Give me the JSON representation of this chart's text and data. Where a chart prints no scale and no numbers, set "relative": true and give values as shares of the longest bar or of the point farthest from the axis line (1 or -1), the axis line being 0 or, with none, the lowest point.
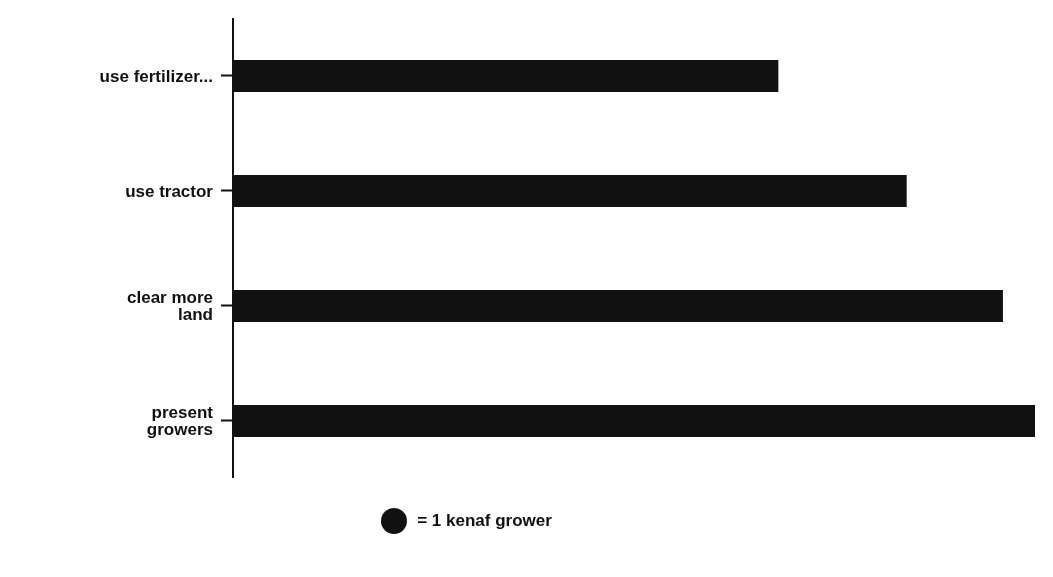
{
  "chart_data": {
    "type": "bar",
    "orientation": "horizontal",
    "relative": true,
    "categories": [
      "use fertilizer...",
      "use tractor",
      "clear more land",
      "present growers"
    ],
    "values": [
      0.68,
      0.84,
      0.96,
      1
    ],
    "color": "#111111",
    "annotations": [
      "= 1 kenaf grower"
    ]
  }
}
